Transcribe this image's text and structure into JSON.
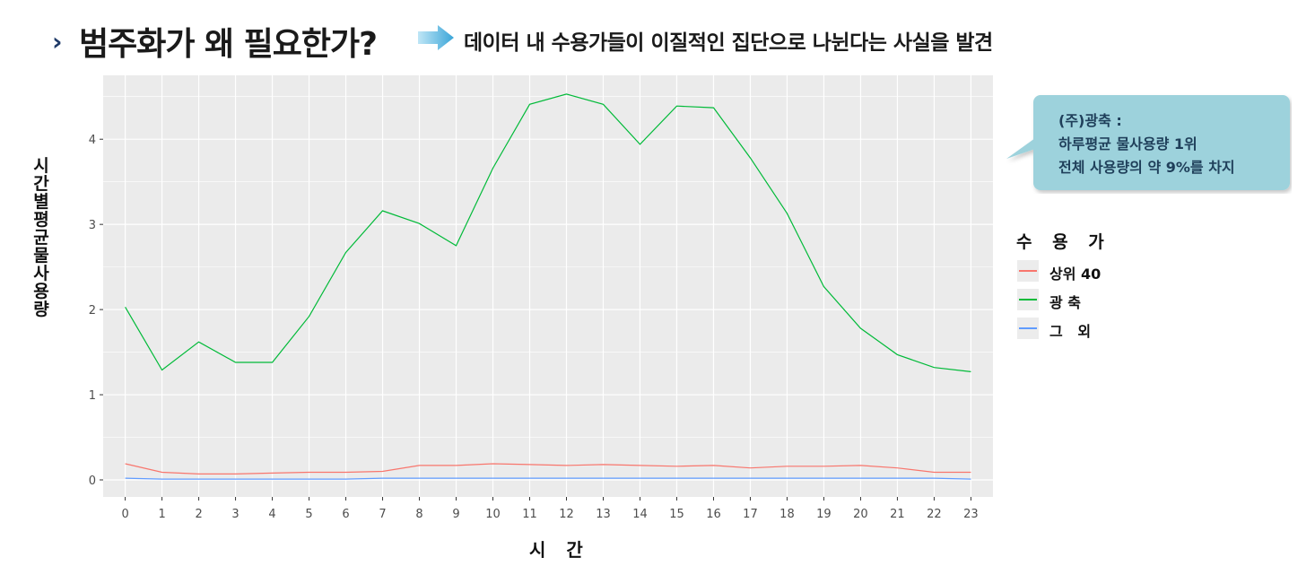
{
  "header": {
    "chevron": "›",
    "title": "범주화가 왜 필요한가?",
    "subtitle": "데이터 내 수용가들이 이질적인 집단으로 나뉜다는 사실을 발견"
  },
  "callout": {
    "lines": [
      "(주)광축 :",
      "하루평균 물사용량 1위",
      "전체 사용량의 약 9%를 차지"
    ]
  },
  "colors": {
    "panel": "#ebebeb",
    "grid": "#ffffff",
    "callout": "#9dd2dc",
    "arrow": "#4fb3dc"
  },
  "chart_data": {
    "type": "line",
    "xlabel": "시 간",
    "ylabel": "시간별 평균 물 사용량",
    "legend_title": "수 용 가",
    "legend_position": "right",
    "grid": true,
    "x": [
      0,
      1,
      2,
      3,
      4,
      5,
      6,
      7,
      8,
      9,
      10,
      11,
      12,
      13,
      14,
      15,
      16,
      17,
      18,
      19,
      20,
      21,
      22,
      23
    ],
    "xlim": [
      -0.6,
      23.6
    ],
    "ylim": [
      -0.2,
      4.75
    ],
    "yticks": [
      0,
      1,
      2,
      3,
      4
    ],
    "series": [
      {
        "name": "상위 40",
        "color": "#f8766d",
        "values": [
          0.19,
          0.09,
          0.07,
          0.07,
          0.08,
          0.09,
          0.09,
          0.1,
          0.17,
          0.17,
          0.19,
          0.18,
          0.17,
          0.18,
          0.17,
          0.16,
          0.17,
          0.14,
          0.16,
          0.16,
          0.17,
          0.14,
          0.09,
          0.09
        ]
      },
      {
        "name": "광 축",
        "color": "#00ba38",
        "values": [
          2.03,
          1.29,
          1.62,
          1.38,
          1.38,
          1.92,
          2.67,
          3.16,
          3.01,
          2.75,
          3.66,
          4.41,
          4.53,
          4.41,
          3.94,
          4.39,
          4.37,
          3.78,
          3.13,
          2.27,
          1.78,
          1.47,
          1.32,
          1.27
        ]
      },
      {
        "name": "그   외",
        "color": "#619cff",
        "values": [
          0.02,
          0.01,
          0.01,
          0.01,
          0.01,
          0.01,
          0.01,
          0.02,
          0.02,
          0.02,
          0.02,
          0.02,
          0.02,
          0.02,
          0.02,
          0.02,
          0.02,
          0.02,
          0.02,
          0.02,
          0.02,
          0.02,
          0.02,
          0.01
        ]
      }
    ]
  }
}
